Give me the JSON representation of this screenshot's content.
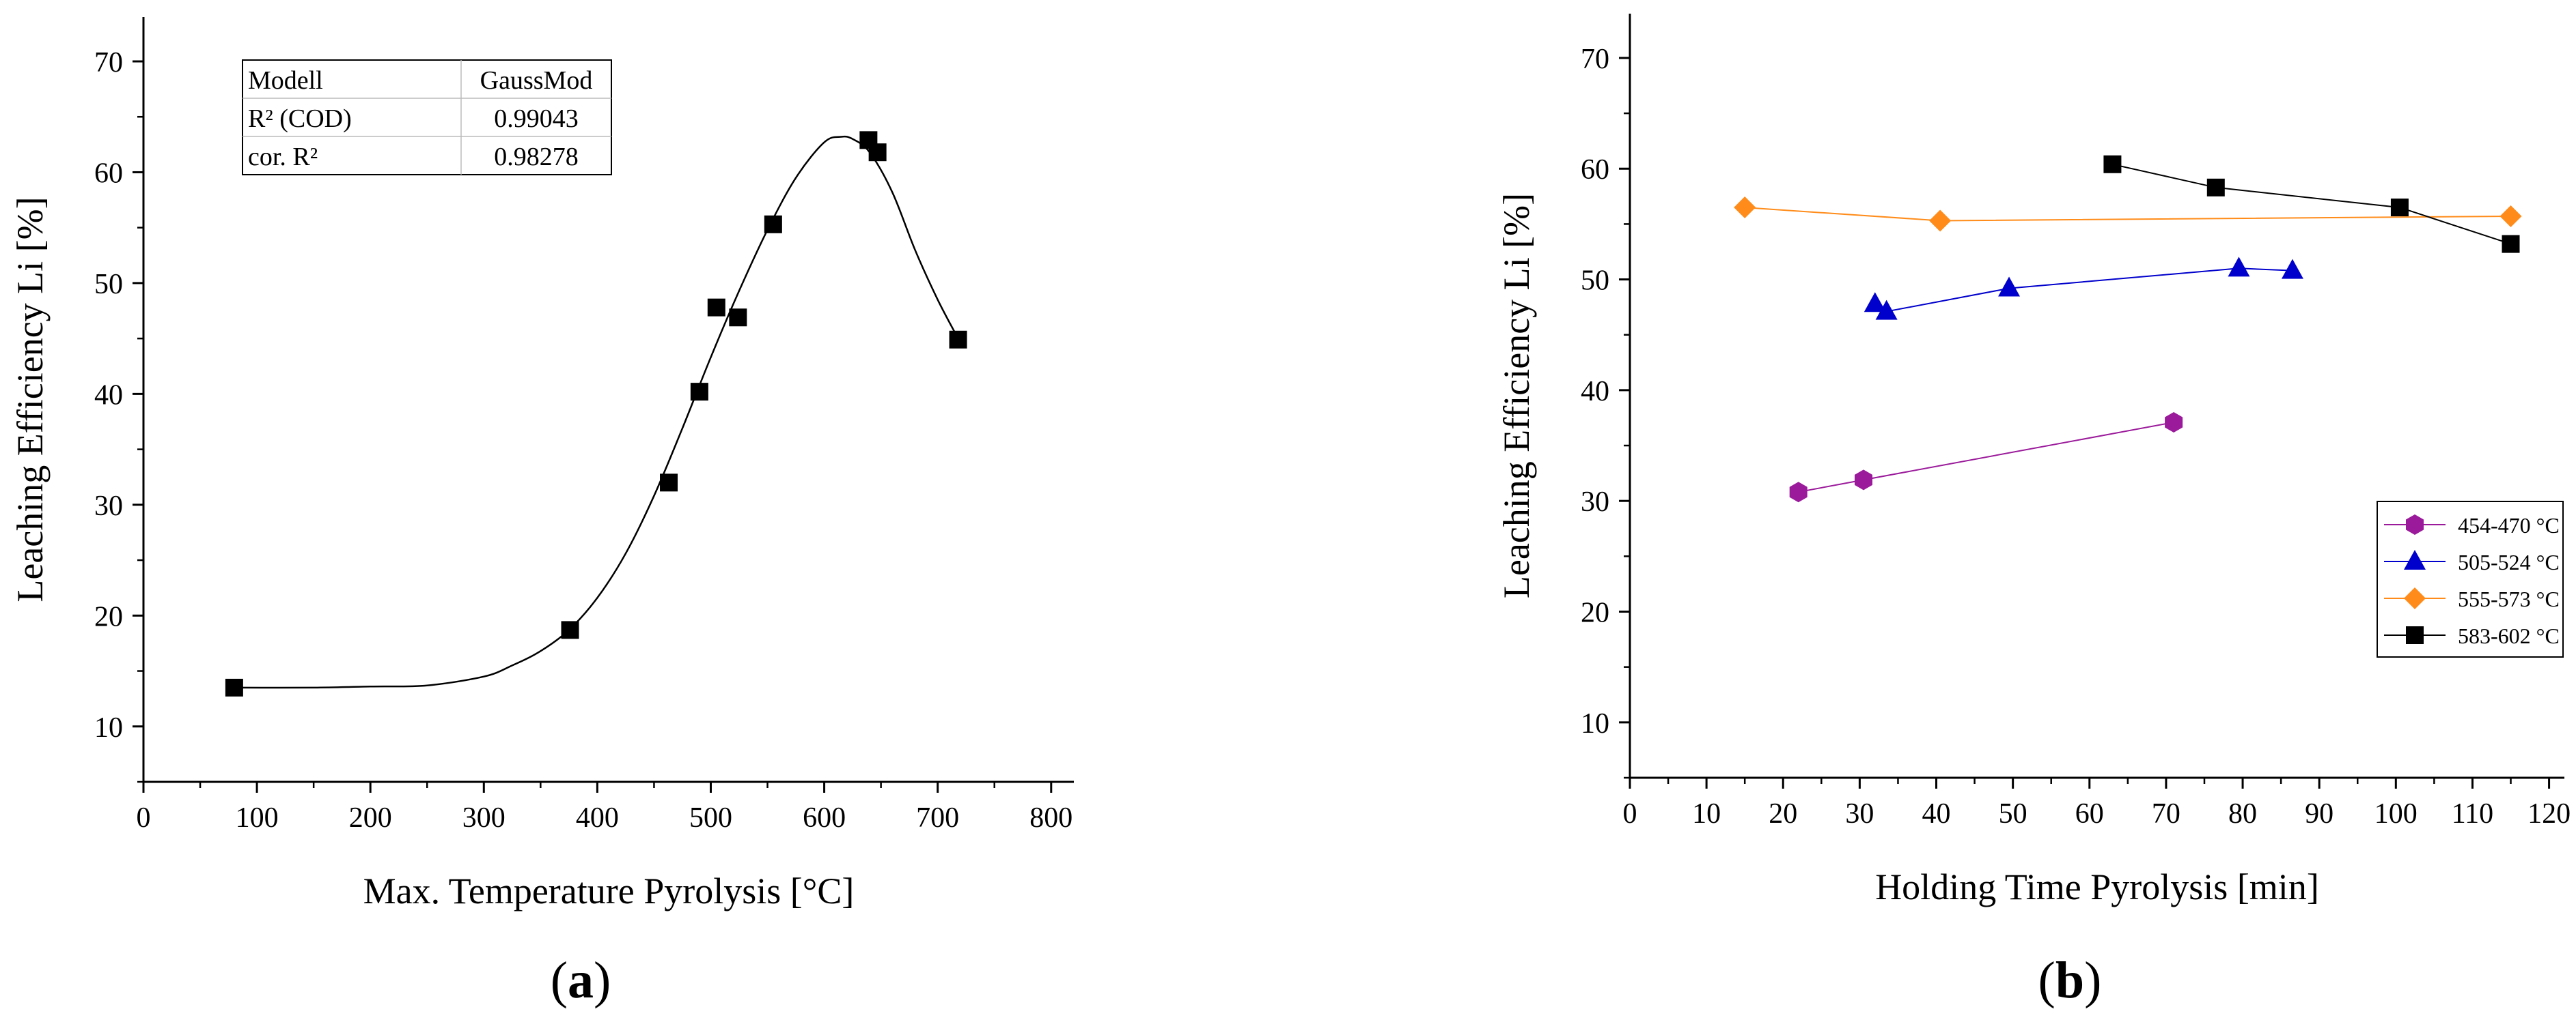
{
  "chart_data": [
    {
      "type": "scatter",
      "panel_label": "a",
      "xlabel": "Max. Temperature Pyrolysis [°C]",
      "ylabel": "Leaching Efficiency Li [%]",
      "xlim": [
        0,
        820
      ],
      "ylim": [
        5,
        74
      ],
      "xticks": [
        0,
        100,
        200,
        300,
        400,
        500,
        600,
        700,
        800
      ],
      "yticks": [
        10,
        20,
        30,
        40,
        50,
        60,
        70
      ],
      "grid": false,
      "series": [
        {
          "marker": "square",
          "color": "#000000",
          "x": [
            80,
            376,
            463,
            490,
            505,
            524,
            555,
            639,
            647,
            718
          ],
          "y": [
            13.5,
            18.7,
            32.0,
            40.2,
            47.8,
            46.9,
            55.3,
            62.9,
            61.8,
            44.9
          ]
        }
      ],
      "fit": {
        "model": "GaussMod",
        "color": "#000000",
        "x": [
          80,
          150,
          200,
          250,
          300,
          325,
          350,
          375,
          400,
          425,
          450,
          475,
          500,
          525,
          550,
          575,
          600,
          615,
          625,
          640,
          660,
          680,
          700,
          718
        ],
        "y": [
          13.5,
          13.5,
          13.6,
          13.7,
          14.5,
          15.5,
          16.8,
          18.7,
          21.6,
          25.6,
          30.8,
          36.9,
          43.3,
          49.3,
          54.8,
          59.5,
          62.7,
          63.2,
          63.0,
          61.8,
          58.2,
          53.0,
          48.5,
          45.0
        ]
      },
      "stats_table": {
        "rows": [
          [
            "Modell",
            "GaussMod"
          ],
          [
            "R² (COD)",
            "0.99043"
          ],
          [
            "cor. R²",
            "0.98278"
          ]
        ]
      }
    },
    {
      "type": "line",
      "panel_label": "b",
      "xlabel": "Holding Time Pyrolysis [min]",
      "ylabel": "Leaching Efficiency Li [%]",
      "xlim": [
        0,
        122
      ],
      "ylim": [
        5,
        74
      ],
      "xticks": [
        0,
        10,
        20,
        30,
        40,
        50,
        60,
        70,
        80,
        90,
        100,
        110,
        120
      ],
      "yticks": [
        10,
        20,
        30,
        40,
        50,
        60,
        70
      ],
      "grid": false,
      "legend_position": "bottom-right",
      "series": [
        {
          "name": "454-470 °C",
          "marker": "hexagon",
          "color": "#9b1a9b",
          "x": [
            22,
            30.5,
            71
          ],
          "y": [
            30.8,
            31.9,
            37.1
          ]
        },
        {
          "name": "505-524 °C",
          "marker": "triangle",
          "color": "#0000cc",
          "x": [
            32,
            33.5,
            49.5,
            79.5,
            86.5
          ],
          "y": [
            47.8,
            47.1,
            49.2,
            51.0,
            50.8
          ]
        },
        {
          "name": "555-573 °C",
          "marker": "diamond",
          "color": "#ff8c1a",
          "x": [
            15,
            40.5,
            115
          ],
          "y": [
            56.5,
            55.3,
            55.7
          ]
        },
        {
          "name": "583-602 °C",
          "marker": "square",
          "color": "#000000",
          "x": [
            63,
            76.5,
            100.5,
            115
          ],
          "y": [
            60.4,
            58.3,
            56.5,
            53.2
          ]
        }
      ]
    }
  ]
}
